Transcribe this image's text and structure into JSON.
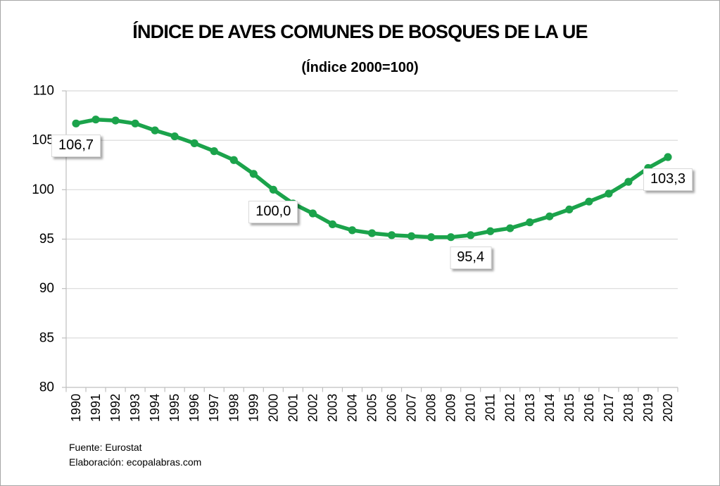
{
  "chart_data": {
    "type": "line",
    "title": "ÍNDICE DE AVES COMUNES DE BOSQUES DE LA UE",
    "subtitle": "(Índice 2000=100)",
    "x": [
      1990,
      1991,
      1992,
      1993,
      1994,
      1995,
      1996,
      1997,
      1998,
      1999,
      2000,
      2001,
      2002,
      2003,
      2004,
      2005,
      2006,
      2007,
      2008,
      2009,
      2010,
      2011,
      2012,
      2013,
      2014,
      2015,
      2016,
      2017,
      2018,
      2019,
      2020
    ],
    "series": [
      {
        "name": "Índice de aves comunes de bosques",
        "values": [
          106.7,
          107.1,
          107.0,
          106.7,
          106.0,
          105.4,
          104.7,
          103.9,
          103.0,
          101.6,
          100.0,
          98.6,
          97.6,
          96.5,
          95.9,
          95.6,
          95.4,
          95.3,
          95.2,
          95.2,
          95.4,
          95.8,
          96.1,
          96.7,
          97.3,
          98.0,
          98.8,
          99.6,
          100.8,
          102.2,
          103.3
        ]
      }
    ],
    "ylim": [
      80,
      110
    ],
    "ytick_step": 5,
    "yticks": [
      110,
      105,
      100,
      95,
      90,
      85,
      80
    ],
    "grid": true,
    "legend": false,
    "line_color": "#1BA34B",
    "grid_color": "#D9D9D9",
    "axis_color": "#BFBFBF",
    "data_labels": [
      {
        "year": 1990,
        "text": "106,7"
      },
      {
        "year": 2000,
        "text": "100,0"
      },
      {
        "year": 2010,
        "text": "95,4"
      },
      {
        "year": 2020,
        "text": "103,3"
      }
    ]
  },
  "footer": {
    "source": "Fuente: Eurostat",
    "elaboration": "Elaboración: ecopalabras.com"
  }
}
